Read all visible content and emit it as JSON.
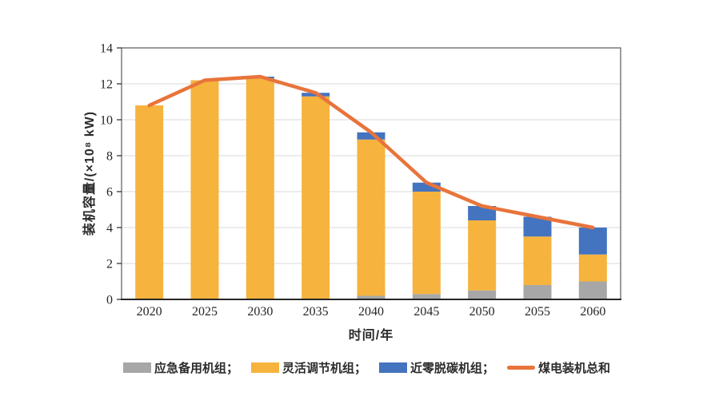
{
  "chart_data": {
    "type": "bar",
    "stacked": true,
    "title": "",
    "categories": [
      "2020",
      "2025",
      "2030",
      "2035",
      "2040",
      "2045",
      "2050",
      "2055",
      "2060"
    ],
    "series": [
      {
        "name": "应急备用机组",
        "kind": "bar",
        "color": "#A7A7A7",
        "values": [
          0,
          0,
          0,
          0,
          0.2,
          0.3,
          0.5,
          0.8,
          1.0
        ]
      },
      {
        "name": "灵活调节机组",
        "kind": "bar",
        "color": "#F6B33D",
        "values": [
          10.8,
          12.2,
          12.3,
          11.3,
          8.7,
          5.7,
          3.9,
          2.7,
          1.5
        ]
      },
      {
        "name": "近零脱碳机组",
        "kind": "bar",
        "color": "#4473C0",
        "values": [
          0,
          0,
          0.1,
          0.2,
          0.4,
          0.5,
          0.8,
          1.1,
          1.5
        ]
      },
      {
        "name": "煤电装机总和",
        "kind": "line",
        "color": "#E8743B",
        "values": [
          10.8,
          12.2,
          12.4,
          11.5,
          9.3,
          6.5,
          5.2,
          4.6,
          4.0
        ]
      }
    ],
    "xlabel": "时间/年",
    "ylabel": "装机容量/(×10⁸ kW)",
    "ylim": [
      0,
      14
    ],
    "ytick_step": 2,
    "yticks": [
      "0",
      "2",
      "4",
      "6",
      "8",
      "10",
      "12",
      "14"
    ],
    "grid": "horizontal",
    "legend_position": "bottom"
  },
  "legend": {
    "items": [
      {
        "label": "应急备用机组；",
        "swatch": "bar",
        "color": "#A7A7A7"
      },
      {
        "label": "灵活调节机组；",
        "swatch": "bar",
        "color": "#F6B33D"
      },
      {
        "label": "近零脱碳机组；",
        "swatch": "bar",
        "color": "#4473C0"
      },
      {
        "label": "煤电装机总和",
        "swatch": "line",
        "color": "#E8743B"
      }
    ]
  },
  "style": {
    "background": "#FFFFFF",
    "grid_color": "#D9D9D9",
    "box_color": "#595959",
    "axis_color": "#262626",
    "text_color": "#262626"
  }
}
